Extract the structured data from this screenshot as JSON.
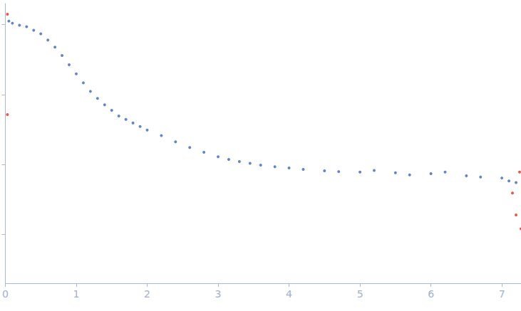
{
  "chart_data": {
    "type": "scatter",
    "log": "y",
    "grid": false,
    "tick_labels": "x",
    "xlim": [
      0,
      7.27
    ],
    "xticks": [
      0,
      1,
      2,
      3,
      4,
      5,
      6,
      7
    ],
    "ylim": [
      0.0002,
      2
    ],
    "yticks": [
      0.001,
      0.01,
      0.1,
      1
    ],
    "series": [
      {
        "color": "#3a66b8",
        "marker": "circle",
        "x": [
          0.05,
          0.1,
          0.2,
          0.3,
          0.4,
          0.5,
          0.6,
          0.7,
          0.8,
          0.9,
          1.0,
          1.1,
          1.2,
          1.3,
          1.4,
          1.5,
          1.6,
          1.7,
          1.8,
          1.9,
          2.0,
          2.2,
          2.4,
          2.6,
          2.8,
          3.0,
          3.15,
          3.3,
          3.45,
          3.6,
          3.8,
          4.0,
          4.2,
          4.5,
          4.7,
          5.0,
          5.2,
          5.5,
          5.7,
          6.0,
          6.2,
          6.5,
          6.7,
          7.0,
          7.1,
          7.2
        ],
        "values": [
          1.123,
          1.047,
          0.977,
          0.933,
          0.831,
          0.74,
          0.601,
          0.477,
          0.361,
          0.267,
          0.198,
          0.147,
          0.111,
          0.0881,
          0.0714,
          0.0595,
          0.0494,
          0.044,
          0.0392,
          0.0349,
          0.0311,
          0.0259,
          0.0211,
          0.0175,
          0.0149,
          0.0129,
          0.0118,
          0.011,
          0.0104,
          0.0098,
          0.0093,
          0.0089,
          0.0085,
          0.0081,
          0.0079,
          0.0078,
          0.0082,
          0.0076,
          0.0071,
          0.0074,
          0.0078,
          0.0069,
          0.0066,
          0.0064,
          0.0058,
          0.0055
        ]
      },
      {
        "color": "#e0301e",
        "marker": "circle",
        "x": [
          0.03,
          0.03,
          7.15,
          7.2,
          7.25,
          7.27
        ],
        "values": [
          1.41,
          0.0516,
          0.0039,
          0.0019,
          0.0078,
          0.0012
        ]
      }
    ]
  }
}
